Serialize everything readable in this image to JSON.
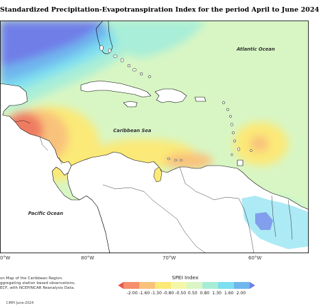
{
  "title": "Standardized Precipitation-Evapotranspiration Index for the period April to June 2024",
  "labels": {
    "atlantic": "Atlantic Ocean",
    "caribbean": "Caribbean Sea",
    "pacific": "Pacific Ocean"
  },
  "axis_ticks": [
    "0°W",
    "80°W",
    "70°W",
    "60°W"
  ],
  "notes": [
    "on Map of the Caribbean Region.",
    "ggregating station based observations,",
    "ECF, with NCEP/NCAR Reanalysis Data."
  ],
  "credit": "CIMH June-2024",
  "legend": {
    "title": "SPEI Index",
    "labels": [
      "-2.00",
      "-1.60",
      "-1.30",
      "-0.80",
      "-0.50",
      "0.50",
      "0.80",
      "1.30",
      "1.60",
      "2.00"
    ],
    "colors": [
      "#e8554e",
      "#f58f6b",
      "#f9c27c",
      "#fbe978",
      "#f4f7a6",
      "#d9f6c4",
      "#a7edd6",
      "#7ddff0",
      "#6fb6ee",
      "#6f7fe8"
    ]
  }
}
